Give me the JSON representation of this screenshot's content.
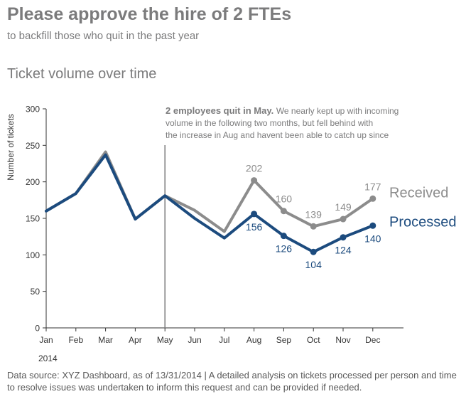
{
  "headline": "Please approve the hire of 2 FTEs",
  "subheadline": "to backfill those who quit in the past year",
  "footer": "Data source: XYZ Dashboard, as of 13/31/2014 | A detailed analysis on tickets processed per person and time to resolve issues was undertaken to inform this request and can be provided if needed.",
  "colors": {
    "received": "#8c8c8c",
    "processed": "#1c4b7e",
    "text": "#7b7b7c",
    "axis": "#333333"
  },
  "chart_data": {
    "type": "line",
    "title": "Ticket volume over time",
    "xlabel": "2014",
    "ylabel": "Number of tickets",
    "ylim": [
      0,
      300
    ],
    "yticks": [
      0,
      50,
      100,
      150,
      200,
      250,
      300
    ],
    "categories": [
      "Jan",
      "Feb",
      "Mar",
      "Apr",
      "May",
      "Jun",
      "Jul",
      "Aug",
      "Sep",
      "Oct",
      "Nov",
      "Dec"
    ],
    "series": [
      {
        "name": "Received",
        "values": [
          160,
          184,
          241,
          149,
          181,
          161,
          132,
          202,
          160,
          139,
          149,
          177
        ]
      },
      {
        "name": "Processed",
        "values": [
          160,
          184,
          237,
          149,
          181,
          150,
          123,
          156,
          126,
          104,
          124,
          140
        ]
      }
    ],
    "label_from_index": 7,
    "grid": false,
    "legend": "direct labels at right end of lines",
    "annotation": {
      "category": "May",
      "bold": "2 employees quit in May.",
      "text": "We nearly kept up with incoming volume in the following two months, but fell behind with the increase in Aug and havent been able to catch up since"
    }
  }
}
